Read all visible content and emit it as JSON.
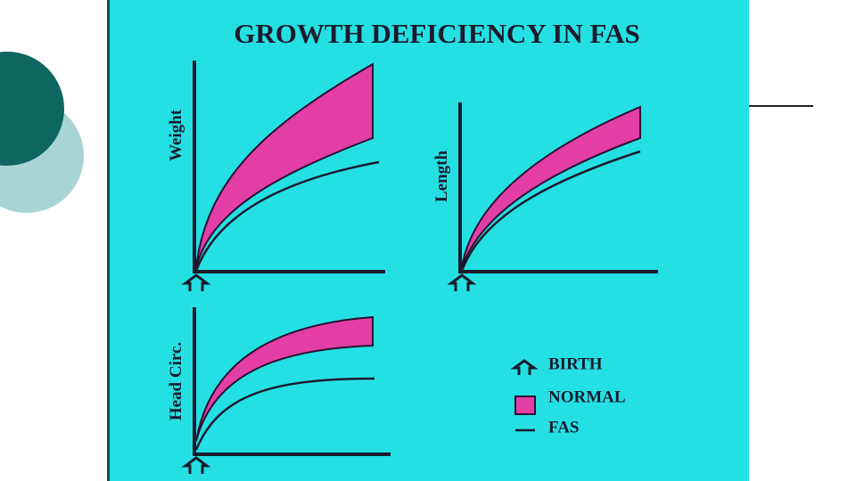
{
  "header": {
    "title": "GROWTH DEFICIENCY IN FAS"
  },
  "panels": [
    {
      "axis_label": "Weight"
    },
    {
      "axis_label": "Length"
    },
    {
      "axis_label": "Head Circ."
    }
  ],
  "legend": [
    {
      "label": "BIRTH"
    },
    {
      "label": "NORMAL"
    },
    {
      "label": "FAS"
    }
  ]
}
